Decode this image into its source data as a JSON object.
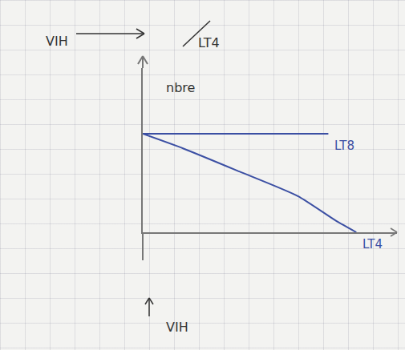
{
  "chart_data": {
    "type": "line",
    "y_label": "nbre",
    "xlim": [
      0,
      10
    ],
    "ylim": [
      0,
      10
    ],
    "tick_labels": false,
    "series": [
      {
        "name": "LT8",
        "color": "#3b4fa3",
        "x": [
          0,
          7.3
        ],
        "values": [
          6,
          6
        ]
      },
      {
        "name": "LT4",
        "color": "#3b4fa3",
        "x": [
          0,
          1.6,
          3.8,
          6.1,
          7.6,
          8.4
        ],
        "values": [
          6,
          5.1,
          3.7,
          2.2,
          0.7,
          0
        ]
      }
    ],
    "annotations": [
      "VIH",
      "LT4",
      "VIH"
    ]
  }
}
